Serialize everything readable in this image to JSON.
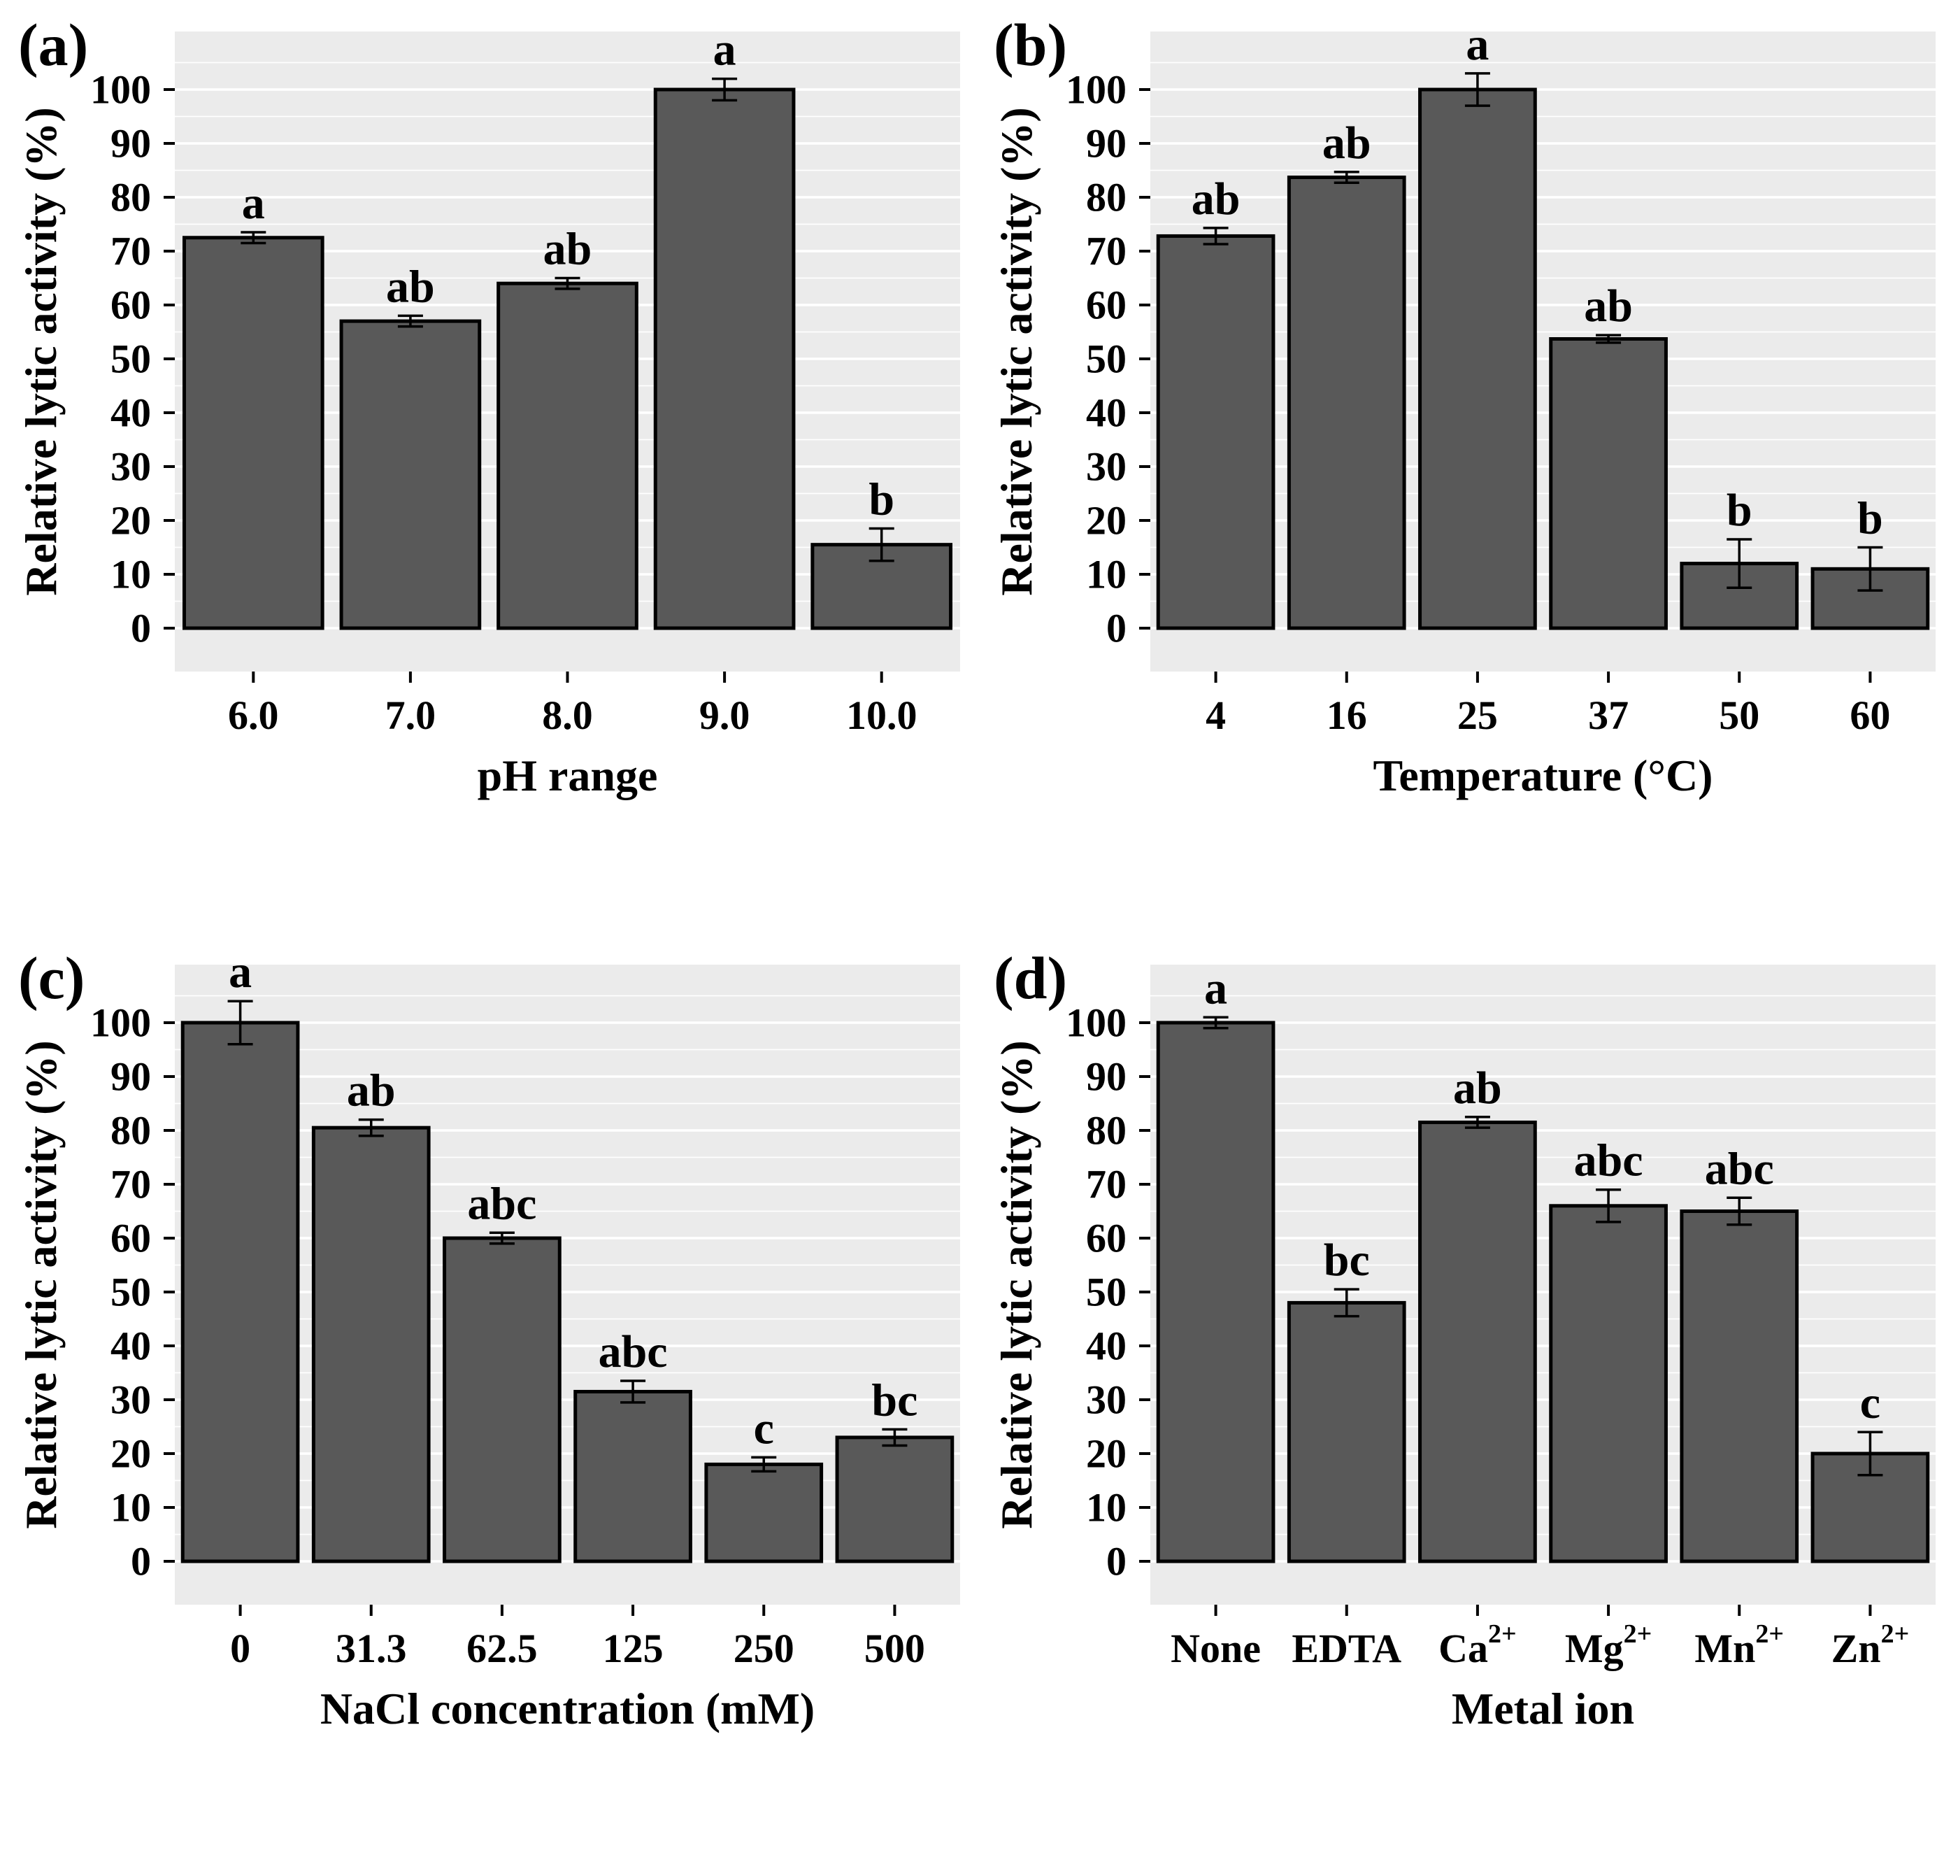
{
  "style": {
    "panel_bg": "#ebebeb",
    "bar_fill": "#595959",
    "bar_outline": "#000000",
    "grid_color": "#ffffff",
    "text_color": "#000000"
  },
  "chart_data": [
    {
      "type": "bar",
      "panel_label": "(a)",
      "xlabel": "pH range",
      "ylabel": "Relative lytic activity (%)",
      "categories": [
        "6.0",
        "7.0",
        "8.0",
        "9.0",
        "10.0"
      ],
      "values": [
        72.5,
        57,
        64,
        100,
        15.5
      ],
      "errors": [
        1,
        1,
        1,
        2,
        3
      ],
      "sig_letters": [
        "a",
        "ab",
        "ab",
        "a",
        "b"
      ],
      "ylim": [
        0,
        100
      ],
      "ytick_step": 10,
      "grid": true,
      "legend_position": "none"
    },
    {
      "type": "bar",
      "panel_label": "(b)",
      "xlabel": "Temperature (°C)",
      "ylabel": "Relative lytic activity (%)",
      "categories": [
        "4",
        "16",
        "25",
        "37",
        "50",
        "60"
      ],
      "values": [
        72.8,
        83.7,
        100,
        53.7,
        12,
        11
      ],
      "errors": [
        1.5,
        1,
        3,
        0.7,
        4.5,
        4
      ],
      "sig_letters": [
        "ab",
        "ab",
        "a",
        "ab",
        "b",
        "b"
      ],
      "ylim": [
        0,
        100
      ],
      "ytick_step": 10,
      "grid": true,
      "legend_position": "none"
    },
    {
      "type": "bar",
      "panel_label": "(c)",
      "xlabel": "NaCl concentration (mM)",
      "ylabel": "Relative lytic activity (%)",
      "categories": [
        "0",
        "31.3",
        "62.5",
        "125",
        "250",
        "500"
      ],
      "values": [
        100,
        80.5,
        60,
        31.5,
        18,
        23
      ],
      "errors": [
        4,
        1.5,
        1,
        2,
        1.3,
        1.5
      ],
      "sig_letters": [
        "a",
        "ab",
        "abc",
        "abc",
        "c",
        "bc"
      ],
      "ylim": [
        0,
        100
      ],
      "ytick_step": 10,
      "grid": true,
      "legend_position": "none"
    },
    {
      "type": "bar",
      "panel_label": "(d)",
      "xlabel": "Metal ion",
      "ylabel": "Relative lytic activity (%)",
      "categories": [
        "None",
        "EDTA",
        "Ca²⁺",
        "Mg²⁺",
        "Mn²⁺",
        "Zn²⁺"
      ],
      "values": [
        100,
        48,
        81.5,
        66,
        65,
        20
      ],
      "errors": [
        1,
        2.5,
        1,
        3,
        2.5,
        4
      ],
      "sig_letters": [
        "a",
        "bc",
        "ab",
        "abc",
        "abc",
        "c"
      ],
      "ylim": [
        0,
        100
      ],
      "ytick_step": 10,
      "grid": true,
      "legend_position": "none"
    }
  ]
}
